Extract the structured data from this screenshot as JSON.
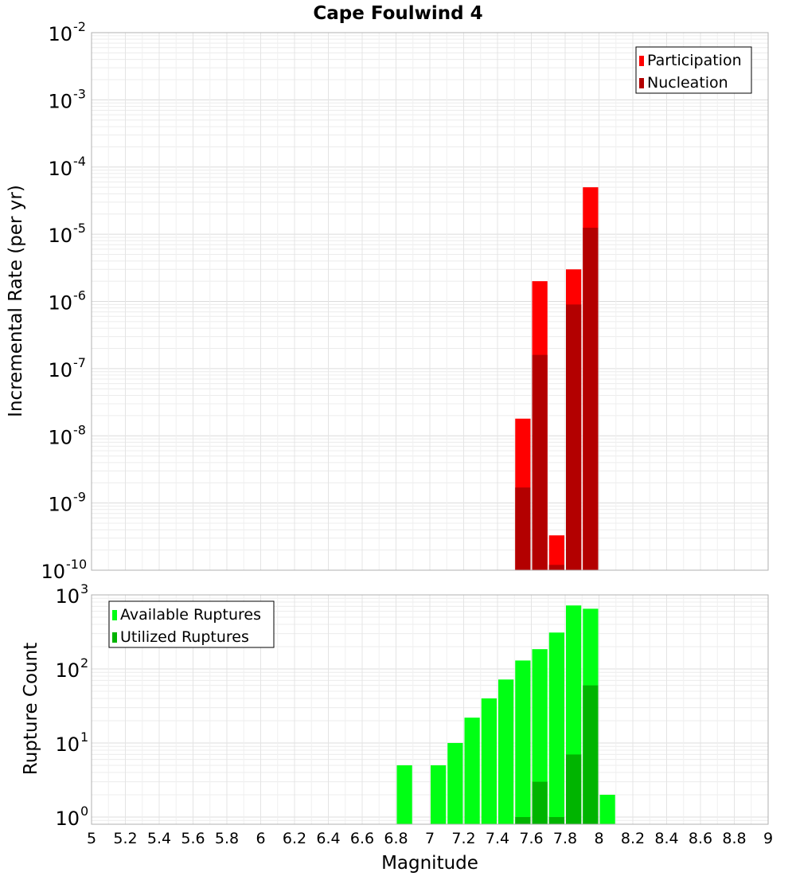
{
  "title": "Cape Foulwind 4",
  "x_axis": {
    "label": "Magnitude",
    "range": [
      5,
      9
    ],
    "ticks": [
      "5",
      "5.2",
      "5.4",
      "5.6",
      "5.8",
      "6",
      "6.2",
      "6.4",
      "6.6",
      "6.8",
      "7",
      "7.2",
      "7.4",
      "7.6",
      "7.8",
      "8",
      "8.2",
      "8.4",
      "8.6",
      "8.8",
      "9"
    ]
  },
  "chart_data": [
    {
      "type": "bar",
      "ylabel": "Incremental Rate (per yr)",
      "yscale": "log",
      "ylim": [
        1e-10,
        0.01
      ],
      "ytick_exponents": [
        "-2",
        "-3",
        "-4",
        "-5",
        "-6",
        "-7",
        "-8",
        "-9",
        "-10"
      ],
      "legend_position": "top-right",
      "series": [
        {
          "name": "Participation",
          "color": "#ff0000",
          "x": [
            7.55,
            7.65,
            7.75,
            7.85,
            7.95
          ],
          "values": [
            1.8e-08,
            2e-06,
            3.3e-10,
            3e-06,
            5e-05
          ]
        },
        {
          "name": "Nucleation",
          "color": "#b30000",
          "x": [
            7.55,
            7.65,
            7.75,
            7.85,
            7.95
          ],
          "values": [
            1.7e-09,
            1.6e-07,
            1.2e-10,
            9e-07,
            1.25e-05
          ]
        }
      ]
    },
    {
      "type": "bar",
      "ylabel": "Rupture Count",
      "yscale": "log",
      "ylim": [
        0.8,
        1000
      ],
      "ytick_exponents": [
        "3",
        "2",
        "1",
        "0"
      ],
      "legend_position": "top-left",
      "series": [
        {
          "name": "Available Ruptures",
          "color": "#00ff14",
          "x": [
            6.85,
            7.05,
            7.15,
            7.25,
            7.35,
            7.45,
            7.55,
            7.65,
            7.75,
            7.85,
            7.95,
            8.05
          ],
          "values": [
            5,
            5,
            10,
            22,
            40,
            72,
            130,
            185,
            310,
            720,
            650,
            2
          ]
        },
        {
          "name": "Utilized Ruptures",
          "color": "#00b400",
          "x": [
            7.55,
            7.65,
            7.75,
            7.85,
            7.95
          ],
          "values": [
            1,
            3,
            1,
            7,
            60
          ]
        }
      ]
    }
  ]
}
